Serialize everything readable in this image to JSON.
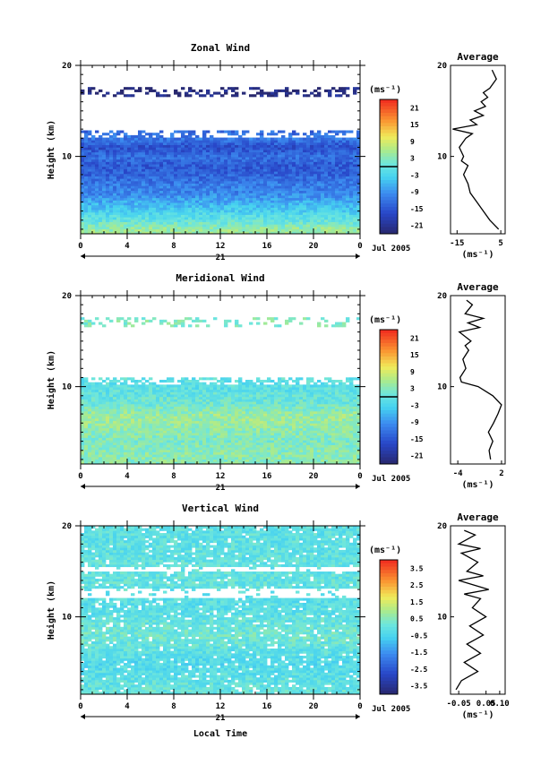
{
  "panels": [
    {
      "id": "zonal",
      "title": "Zonal Wind",
      "unit_label": "(ms⁻¹)",
      "colorbar_ticks": [
        "21",
        "15",
        "9",
        "3",
        "-3",
        "-9",
        "-15",
        "-21"
      ],
      "colorbar_range": [
        -24,
        24
      ],
      "colorbar_line_value": 0,
      "avg_title": "Average",
      "avg_x_ticks": [
        "-15",
        "5"
      ],
      "avg_x_range": [
        -18,
        7
      ],
      "avg_unit": "(ms⁻¹)"
    },
    {
      "id": "meridional",
      "title": "Meridional Wind",
      "unit_label": "(ms⁻¹)",
      "colorbar_ticks": [
        "21",
        "15",
        "9",
        "3",
        "-3",
        "-9",
        "-15",
        "-21"
      ],
      "colorbar_range": [
        -24,
        24
      ],
      "colorbar_line_value": 0,
      "avg_title": "Average",
      "avg_x_ticks": [
        "-4",
        "2"
      ],
      "avg_x_range": [
        -5,
        2.5
      ],
      "avg_unit": "(ms⁻¹)"
    },
    {
      "id": "vertical",
      "title": "Vertical Wind",
      "unit_label": "(ms⁻¹)",
      "colorbar_ticks": [
        "3.5",
        "2.5",
        "1.5",
        "0.5",
        "-0.5",
        "-1.5",
        "-2.5",
        "-3.5"
      ],
      "colorbar_range": [
        -4,
        4
      ],
      "colorbar_line_value": null,
      "avg_title": "Average",
      "avg_x_ticks": [
        "-0.05",
        "0.05",
        "0.10"
      ],
      "avg_x_range": [
        -0.08,
        0.12
      ],
      "avg_unit": "(ms⁻¹)"
    }
  ],
  "y_label": "Height (km)",
  "y_ticks": [
    "20",
    "10"
  ],
  "x_ticks": [
    "0",
    "4",
    "8",
    "12",
    "16",
    "20",
    "0"
  ],
  "date_day": "21",
  "date_label": "Jul 2005",
  "x_title": "Local Time",
  "chart_data": [
    {
      "type": "heatmap",
      "title": "Zonal Wind",
      "xlabel": "",
      "ylabel": "Height (km)",
      "xlim": [
        0,
        24
      ],
      "ylim": [
        1.5,
        20
      ],
      "unit": "ms⁻¹",
      "colorbar_ticks": [
        21,
        15,
        9,
        3,
        -3,
        -9,
        -15,
        -21
      ],
      "profile_by_height": [
        {
          "km": 2,
          "value": 4
        },
        {
          "km": 3,
          "value": 0
        },
        {
          "km": 4,
          "value": -3
        },
        {
          "km": 5,
          "value": -6
        },
        {
          "km": 6,
          "value": -9
        },
        {
          "km": 7,
          "value": -10
        },
        {
          "km": 8,
          "value": -12
        },
        {
          "km": 9,
          "value": -13
        },
        {
          "km": 10,
          "value": -11
        },
        {
          "km": 11,
          "value": -14
        },
        {
          "km": 12,
          "value": -10
        },
        {
          "km": 17,
          "value": -20
        }
      ],
      "empty_height_ranges_km": [
        [
          12.5,
          16.5
        ],
        [
          17.5,
          20
        ]
      ]
    },
    {
      "type": "line",
      "title": "Average",
      "xlabel": "(ms⁻¹)",
      "ylabel": "",
      "xlim": [
        -18,
        7
      ],
      "ylim": [
        1.5,
        20
      ],
      "series": [
        {
          "x": [
            4,
            0,
            -3,
            -6,
            -9,
            -10,
            -12,
            -10,
            -13,
            -12,
            -14,
            -11,
            -8,
            -17,
            -6,
            -9,
            -3,
            -7,
            -2,
            -4,
            -1,
            -3,
            0,
            3,
            1
          ],
          "y": [
            2,
            3,
            4,
            5,
            6,
            7,
            8,
            9,
            9.5,
            10,
            11,
            12,
            12.5,
            13,
            13.5,
            14,
            14.5,
            15,
            15.5,
            16,
            16.5,
            17,
            17.5,
            18.5,
            19.5
          ]
        }
      ]
    },
    {
      "type": "heatmap",
      "title": "Meridional Wind",
      "xlabel": "",
      "ylabel": "Height (km)",
      "xlim": [
        0,
        24
      ],
      "ylim": [
        1.5,
        20
      ],
      "unit": "ms⁻¹",
      "colorbar_ticks": [
        21,
        15,
        9,
        3,
        -3,
        -9,
        -15,
        -21
      ],
      "profile_by_height": [
        {
          "km": 2,
          "value": 3
        },
        {
          "km": 3,
          "value": 3
        },
        {
          "km": 4,
          "value": 2
        },
        {
          "km": 5,
          "value": 3
        },
        {
          "km": 6,
          "value": 4
        },
        {
          "km": 7,
          "value": 4
        },
        {
          "km": 8,
          "value": 1
        },
        {
          "km": 9,
          "value": 0
        },
        {
          "km": 10,
          "value": -1
        },
        {
          "km": 17,
          "value": 2
        }
      ],
      "empty_height_ranges_km": [
        [
          11,
          16.5
        ],
        [
          17.5,
          20
        ]
      ]
    },
    {
      "type": "line",
      "title": "Average",
      "xlabel": "(ms⁻¹)",
      "ylabel": "",
      "xlim": [
        -5,
        2.5
      ],
      "ylim": [
        1.5,
        20
      ],
      "series": [
        {
          "x": [
            0.5,
            0.3,
            0.8,
            0.2,
            0.9,
            1.5,
            2.0,
            0.8,
            -1.2,
            -3.5,
            -3.7,
            -2.9,
            -3.3,
            -2.5,
            -3.0,
            -2.2,
            -3.8,
            -1.0,
            -2.6,
            -0.5,
            -3.0,
            -2.0,
            -2.8
          ],
          "y": [
            2,
            3,
            4,
            5,
            6,
            7,
            8,
            9,
            10,
            10.5,
            11,
            12,
            13,
            14,
            14.5,
            15,
            16,
            16.5,
            17,
            17.5,
            18,
            19,
            19.5
          ]
        }
      ]
    },
    {
      "type": "heatmap",
      "title": "Vertical Wind",
      "xlabel": "Local Time",
      "ylabel": "Height (km)",
      "xlim": [
        0,
        24
      ],
      "ylim": [
        1.5,
        20
      ],
      "unit": "ms⁻¹",
      "colorbar_ticks": [
        3.5,
        2.5,
        1.5,
        0.5,
        -0.5,
        -1.5,
        -2.5,
        -3.5
      ],
      "profile_by_height": [
        {
          "km": 2,
          "value": 0
        },
        {
          "km": 5,
          "value": -0.3
        },
        {
          "km": 8,
          "value": 0.2
        },
        {
          "km": 11,
          "value": -0.2
        },
        {
          "km": 14,
          "value": 0
        },
        {
          "km": 18,
          "value": -0.1
        }
      ],
      "empty_height_ranges_km": [
        [
          12,
          13
        ],
        [
          15,
          15.5
        ]
      ]
    },
    {
      "type": "line",
      "title": "Average",
      "xlabel": "(ms⁻¹)",
      "ylabel": "",
      "xlim": [
        -0.08,
        0.12
      ],
      "ylim": [
        1.5,
        20
      ],
      "series": [
        {
          "x": [
            -0.06,
            -0.04,
            0.02,
            -0.03,
            0.03,
            -0.02,
            0.04,
            -0.01,
            0.05,
            0.0,
            0.03,
            -0.03,
            0.06,
            -0.05,
            0.04,
            -0.02,
            0.02,
            -0.04,
            0.03,
            -0.05,
            0.01,
            -0.03
          ],
          "y": [
            2,
            3,
            4,
            5,
            6,
            7,
            8,
            9,
            10,
            11,
            12,
            12.5,
            13,
            14,
            14.5,
            15,
            16,
            17,
            17.5,
            18,
            19,
            19.5
          ]
        }
      ]
    }
  ]
}
